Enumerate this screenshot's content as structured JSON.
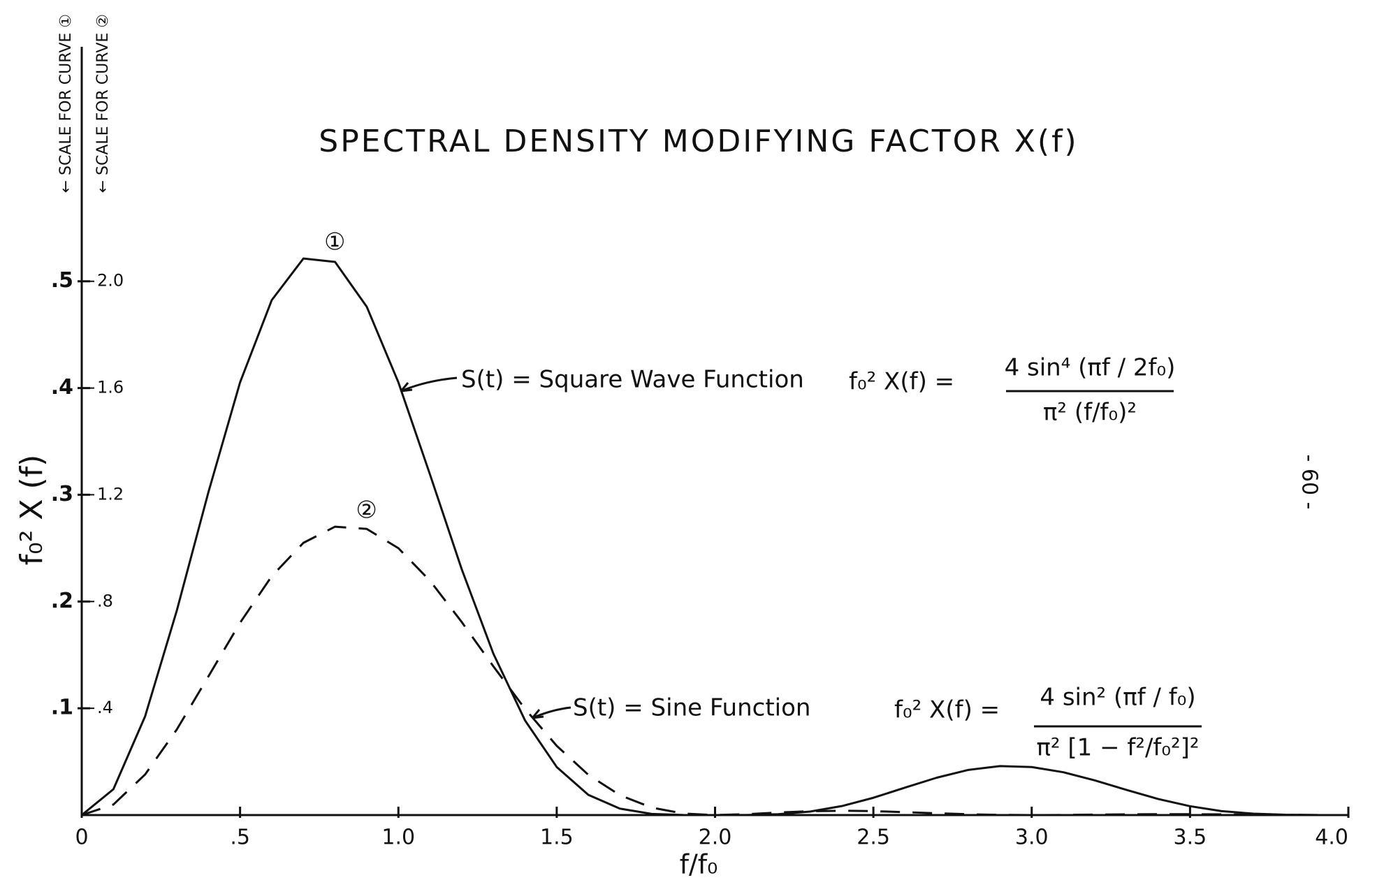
{
  "chart_data": {
    "type": "line",
    "title": "SPECTRAL DENSITY MODIFYING FACTOR   X(f)",
    "x_label": "f/f₀",
    "y_label": "f₀² X (f)",
    "y_scale_note": "← SCALE FOR CURVE ①",
    "y2_scale_note": "← SCALE FOR CURVE ②",
    "page_number": "- 60 -",
    "x": [
      0,
      0.1,
      0.2,
      0.3,
      0.4,
      0.5,
      0.6,
      0.7,
      0.8,
      0.9,
      1.0,
      1.1,
      1.2,
      1.3,
      1.4,
      1.5,
      1.6,
      1.7,
      1.8,
      1.9,
      2.0,
      2.1,
      2.2,
      2.3,
      2.4,
      2.5,
      2.6,
      2.7,
      2.8,
      2.9,
      3.0,
      3.1,
      3.2,
      3.3,
      3.4,
      3.5,
      3.6,
      3.7,
      3.8,
      3.9,
      4.0
    ],
    "series": [
      {
        "name": "①",
        "color": "#111111",
        "style": "solid",
        "axis": "y",
        "values": [
          0,
          0.0242,
          0.0924,
          0.1913,
          0.3024,
          0.4053,
          0.4823,
          0.5213,
          0.5181,
          0.4762,
          0.4053,
          0.3188,
          0.2303,
          0.1511,
          0.0886,
          0.045,
          0.0189,
          0.006,
          0.0011,
          0.0001,
          0,
          0.0001,
          0.0008,
          0.0033,
          0.0084,
          0.0162,
          0.0257,
          0.035,
          0.0423,
          0.0459,
          0.045,
          0.0401,
          0.0324,
          0.0235,
          0.015,
          0.0083,
          0.0037,
          0.0013,
          0.0003,
          0.0,
          0
        ]
      },
      {
        "name": "②",
        "color": "#111111",
        "style": "dashed",
        "axis": "y2",
        "values": [
          0,
          0.0395,
          0.1519,
          0.3203,
          0.5195,
          0.7205,
          0.895,
          1.0199,
          1.0805,
          1.0721,
          1.0,
          0.8777,
          0.7233,
          0.5571,
          0.3978,
          0.2594,
          0.1506,
          0.0743,
          0.0279,
          0.0057,
          0,
          0.0033,
          0.0095,
          0.0144,
          0.0162,
          0.0147,
          0.011,
          0.0067,
          0.003,
          0.0007,
          0,
          0.0005,
          0.0016,
          0.0027,
          0.0033,
          0.0032,
          0.0026,
          0.0016,
          0.0008,
          0.0002,
          0
        ]
      }
    ],
    "xlim": [
      0,
      4
    ],
    "xticks": [
      0,
      {
        "value": 0.5,
        "label": ".5"
      },
      {
        "value": 1,
        "label": "1.0"
      },
      1.5,
      {
        "value": 2,
        "label": "2.0"
      },
      2.5,
      {
        "value": 3,
        "label": "3.0"
      },
      3.5,
      {
        "value": 4,
        "label": "4.0"
      }
    ],
    "ylim": [
      0,
      0.7
    ],
    "yticks": [
      {
        "value": 0.1,
        "label": ".1"
      },
      {
        "value": 0.2,
        "label": ".2"
      },
      {
        "value": 0.3,
        "label": ".3"
      },
      {
        "value": 0.4,
        "label": ".4"
      },
      {
        "value": 0.5,
        "label": ".5"
      }
    ],
    "y2lim": [
      0,
      2.8
    ],
    "y2ticks": [
      {
        "value": 0.4,
        "label": ".4"
      },
      {
        "value": 0.8,
        "label": ".8"
      },
      1.2,
      1.6,
      {
        "value": 2,
        "label": "2.0"
      }
    ],
    "grid": false,
    "annotations": [
      {
        "text": "S(t) = Square Wave Function",
        "formula": "f₀² X(f) =",
        "numerator": "4 sin⁴ (πf / 2f₀)",
        "denominator": "π² (f/f₀)²"
      },
      {
        "text": "S(t) =  Sine Function",
        "formula": "f₀² X(f) = ",
        "numerator": "4 sin² (πf / f₀)",
        "denominator": "π² [1 − f²/f₀²]²"
      }
    ]
  }
}
